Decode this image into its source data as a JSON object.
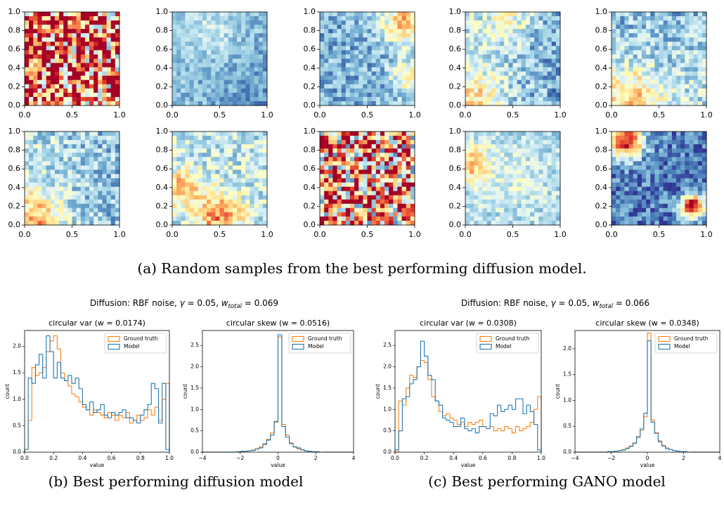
{
  "figure": {
    "suptitles": [
      [
        "Diffusion: RBF noise, ",
        "γ",
        " = 0.05, ",
        "w",
        "total",
        " = 0.069"
      ],
      [
        "Diffusion: RBF noise, ",
        "γ",
        " = 0.05, ",
        "w",
        "total",
        " = 0.066"
      ]
    ],
    "captions": [
      "(a) Random samples from the best performing diffusion model.",
      "(b) Best performing diffusion model",
      "(c) Best performing GANO model"
    ]
  },
  "chart_data": [
    {
      "type": "heatmap",
      "xlim": [
        0,
        1
      ],
      "ylim": [
        0,
        1
      ],
      "xticks": [
        {
          "value": 0,
          "label": "0.0"
        },
        {
          "value": 0.5,
          "label": "0.5"
        },
        {
          "value": 1,
          "label": "1.0"
        }
      ],
      "yticks": [
        {
          "value": 0,
          "label": "0.0"
        },
        {
          "value": 0.2,
          "label": "0.2"
        },
        {
          "value": 0.4,
          "label": "0.4"
        },
        {
          "value": 0.6,
          "label": "0.6"
        },
        {
          "value": 0.8,
          "label": "0.8"
        },
        {
          "value": 1,
          "label": "1.0"
        }
      ]
    },
    {
      "type": "histogram",
      "title": "circular var (w = 0.0174)",
      "xlabel": "value",
      "ylabel": "count",
      "legend": "upper right",
      "xlim": [
        0,
        1
      ],
      "ylim": [
        0,
        2.3
      ],
      "xticks": [
        {
          "value": 0,
          "label": "0.0"
        },
        {
          "value": 0.2,
          "label": "0.2"
        },
        {
          "value": 0.4,
          "label": "0.4"
        },
        {
          "value": 0.6,
          "label": "0.6"
        },
        {
          "value": 0.8,
          "label": "0.8"
        },
        {
          "value": 1,
          "label": "1.0"
        }
      ],
      "yticks": [
        {
          "value": 0,
          "label": "0.0"
        },
        {
          "value": 0.5,
          "label": "0.5"
        },
        {
          "value": 1,
          "label": "1.0"
        },
        {
          "value": 1.5,
          "label": "1.5"
        },
        {
          "value": 2,
          "label": "2.0"
        }
      ],
      "bins": [
        0,
        0.025,
        0.05,
        0.075,
        0.1,
        0.125,
        0.15,
        0.175,
        0.2,
        0.225,
        0.25,
        0.275,
        0.3,
        0.325,
        0.35,
        0.375,
        0.4,
        0.425,
        0.45,
        0.475,
        0.5,
        0.525,
        0.55,
        0.575,
        0.6,
        0.625,
        0.65,
        0.675,
        0.7,
        0.725,
        0.75,
        0.775,
        0.8,
        0.825,
        0.85,
        0.875,
        0.9,
        0.925,
        0.95,
        0.975,
        1
      ],
      "series": [
        {
          "name": "Ground truth",
          "color": "#ff7f0e",
          "values": [
            0.05,
            0.6,
            1.6,
            1.45,
            1.5,
            1.6,
            1.9,
            2.1,
            2.2,
            1.95,
            1.5,
            1.35,
            1.25,
            1.1,
            1.05,
            0.95,
            0.85,
            0.8,
            0.7,
            0.8,
            0.75,
            0.7,
            0.65,
            0.75,
            0.7,
            0.6,
            0.7,
            0.65,
            0.75,
            0.55,
            0.6,
            0.7,
            0.6,
            0.65,
            0.8,
            0.7,
            0.85,
            0.6,
            1.0,
            1.3
          ]
        },
        {
          "name": "Model",
          "color": "#1f77b4",
          "values": [
            0.05,
            1.4,
            1.3,
            1.65,
            1.85,
            1.4,
            2.2,
            1.9,
            1.4,
            1.7,
            1.4,
            1.35,
            1.45,
            1.3,
            1.4,
            1.2,
            0.9,
            0.8,
            0.95,
            0.75,
            0.8,
            0.9,
            0.7,
            0.65,
            0.75,
            0.7,
            0.75,
            0.8,
            0.65,
            0.65,
            0.6,
            0.55,
            0.7,
            0.8,
            0.9,
            1.3,
            1.2,
            0.55,
            1.3,
            0.05
          ]
        }
      ]
    },
    {
      "type": "histogram",
      "title": "circular skew (w = 0.0516)",
      "xlabel": "value",
      "ylabel": "count",
      "legend": "upper right",
      "xlim": [
        -4,
        4
      ],
      "ylim": [
        0,
        2.85
      ],
      "xticks": [
        {
          "value": -4,
          "label": "−4"
        },
        {
          "value": -2,
          "label": "−2"
        },
        0,
        2,
        4
      ],
      "yticks": [
        {
          "value": 0,
          "label": "0.0"
        },
        {
          "value": 0.5,
          "label": "0.5"
        },
        {
          "value": 1,
          "label": "1.0"
        },
        {
          "value": 1.5,
          "label": "1.5"
        },
        {
          "value": 2,
          "label": "2.0"
        },
        {
          "value": 2.5,
          "label": "2.5"
        }
      ],
      "bins": [
        -4,
        -3.8,
        -3.6,
        -3.4,
        -3.2,
        -3,
        -2.8,
        -2.6,
        -2.4,
        -2.2,
        -2,
        -1.8,
        -1.6,
        -1.4,
        -1.2,
        -1,
        -0.8,
        -0.6,
        -0.4,
        -0.2,
        0,
        0.2,
        0.4,
        0.6,
        0.8,
        1,
        1.2,
        1.4,
        1.6,
        1.8,
        2,
        2.2,
        2.4,
        2.6,
        2.8,
        3,
        3.2,
        3.4,
        3.6,
        3.8,
        4
      ],
      "series": [
        {
          "name": "Ground truth",
          "color": "#ff7f0e",
          "values": [
            0,
            0,
            0,
            0,
            0,
            0,
            0,
            0,
            0,
            0.01,
            0.01,
            0.02,
            0.03,
            0.05,
            0.08,
            0.12,
            0.2,
            0.3,
            0.45,
            0.7,
            2.7,
            0.65,
            0.4,
            0.22,
            0.13,
            0.08,
            0.05,
            0.03,
            0.02,
            0.01,
            0.01,
            0,
            0,
            0,
            0,
            0,
            0,
            0,
            0,
            0
          ]
        },
        {
          "name": "Model",
          "color": "#1f77b4",
          "values": [
            0,
            0,
            0,
            0,
            0,
            0,
            0,
            0,
            0,
            0.01,
            0.02,
            0.02,
            0.03,
            0.04,
            0.07,
            0.1,
            0.18,
            0.28,
            0.4,
            0.72,
            2.75,
            0.6,
            0.35,
            0.2,
            0.12,
            0.1,
            0.06,
            0.03,
            0.02,
            0.01,
            0.01,
            0,
            0,
            0,
            0,
            0,
            0,
            0,
            0,
            0
          ]
        }
      ]
    },
    {
      "type": "histogram",
      "title": "circular var (w = 0.0308)",
      "xlabel": "value",
      "ylabel": "count",
      "legend": "upper right",
      "xlim": [
        0,
        1
      ],
      "ylim": [
        0,
        2.85
      ],
      "xticks": [
        {
          "value": 0,
          "label": "0.0"
        },
        {
          "value": 0.2,
          "label": "0.2"
        },
        {
          "value": 0.4,
          "label": "0.4"
        },
        {
          "value": 0.6,
          "label": "0.6"
        },
        {
          "value": 0.8,
          "label": "0.8"
        },
        {
          "value": 1,
          "label": "1.0"
        }
      ],
      "yticks": [
        {
          "value": 0,
          "label": "0.0"
        },
        {
          "value": 0.5,
          "label": "0.5"
        },
        {
          "value": 1,
          "label": "1.0"
        },
        {
          "value": 1.5,
          "label": "1.5"
        },
        {
          "value": 2,
          "label": "2.0"
        },
        {
          "value": 2.5,
          "label": "2.5"
        }
      ],
      "bins": [
        0,
        0.025,
        0.05,
        0.075,
        0.1,
        0.125,
        0.15,
        0.175,
        0.2,
        0.225,
        0.25,
        0.275,
        0.3,
        0.325,
        0.35,
        0.375,
        0.4,
        0.425,
        0.45,
        0.475,
        0.5,
        0.525,
        0.55,
        0.575,
        0.6,
        0.625,
        0.65,
        0.675,
        0.7,
        0.725,
        0.75,
        0.775,
        0.8,
        0.825,
        0.85,
        0.875,
        0.9,
        0.925,
        0.95,
        0.975,
        1
      ],
      "series": [
        {
          "name": "Ground truth",
          "color": "#ff7f0e",
          "values": [
            0,
            1.2,
            1.1,
            1.5,
            1.8,
            1.75,
            2.0,
            2.15,
            2.1,
            1.7,
            1.3,
            1.2,
            0.95,
            0.85,
            0.9,
            0.8,
            0.75,
            0.65,
            0.7,
            0.6,
            0.7,
            0.65,
            0.7,
            0.75,
            0.6,
            0.55,
            0.6,
            0.5,
            0.55,
            0.5,
            0.6,
            0.55,
            0.45,
            0.6,
            0.5,
            0.55,
            0.6,
            0.7,
            1.0,
            1.3
          ]
        },
        {
          "name": "Model",
          "color": "#1f77b4",
          "values": [
            0.05,
            0.5,
            1.25,
            1.3,
            1.6,
            1.7,
            2.0,
            2.6,
            2.25,
            1.8,
            1.7,
            1.2,
            1.1,
            0.8,
            0.75,
            0.7,
            0.6,
            0.6,
            0.8,
            0.55,
            0.5,
            0.55,
            0.45,
            0.6,
            0.6,
            0.55,
            0.9,
            0.85,
            1.1,
            0.95,
            1.0,
            1.1,
            1.0,
            1.25,
            1.25,
            0.9,
            1.1,
            0.95,
            0.65,
            0.05
          ]
        }
      ]
    },
    {
      "type": "histogram",
      "title": "circular skew (w = 0.0348)",
      "xlabel": "value",
      "ylabel": "count",
      "legend": "upper right",
      "xlim": [
        -4,
        4
      ],
      "ylim": [
        0,
        2.35
      ],
      "xticks": [
        {
          "value": -4,
          "label": "−4"
        },
        {
          "value": -2,
          "label": "−2"
        },
        0,
        2,
        4
      ],
      "yticks": [
        {
          "value": 0,
          "label": "0.0"
        },
        {
          "value": 0.5,
          "label": "0.5"
        },
        {
          "value": 1,
          "label": "1.0"
        },
        {
          "value": 1.5,
          "label": "1.5"
        },
        {
          "value": 2,
          "label": "2.0"
        }
      ],
      "bins": [
        -4,
        -3.8,
        -3.6,
        -3.4,
        -3.2,
        -3,
        -2.8,
        -2.6,
        -2.4,
        -2.2,
        -2,
        -1.8,
        -1.6,
        -1.4,
        -1.2,
        -1,
        -0.8,
        -0.6,
        -0.4,
        -0.2,
        0,
        0.2,
        0.4,
        0.6,
        0.8,
        1,
        1.2,
        1.4,
        1.6,
        1.8,
        2,
        2.2,
        2.4,
        2.6,
        2.8,
        3,
        3.2,
        3.4,
        3.6,
        3.8,
        4
      ],
      "series": [
        {
          "name": "Ground truth",
          "color": "#ff7f0e",
          "values": [
            0,
            0,
            0,
            0,
            0,
            0,
            0,
            0,
            0,
            0.01,
            0.01,
            0.02,
            0.03,
            0.05,
            0.08,
            0.12,
            0.18,
            0.28,
            0.42,
            0.68,
            2.3,
            0.62,
            0.38,
            0.22,
            0.13,
            0.08,
            0.05,
            0.03,
            0.02,
            0.01,
            0.01,
            0,
            0,
            0,
            0,
            0,
            0,
            0,
            0,
            0
          ]
        },
        {
          "name": "Model",
          "color": "#1f77b4",
          "values": [
            0,
            0,
            0,
            0,
            0,
            0,
            0,
            0,
            0,
            0.01,
            0.01,
            0.02,
            0.03,
            0.04,
            0.07,
            0.11,
            0.17,
            0.3,
            0.45,
            0.75,
            2.15,
            0.58,
            0.36,
            0.2,
            0.12,
            0.07,
            0.05,
            0.03,
            0.02,
            0.01,
            0.01,
            0,
            0,
            0,
            0,
            0,
            0,
            0,
            0,
            0
          ]
        }
      ]
    }
  ]
}
